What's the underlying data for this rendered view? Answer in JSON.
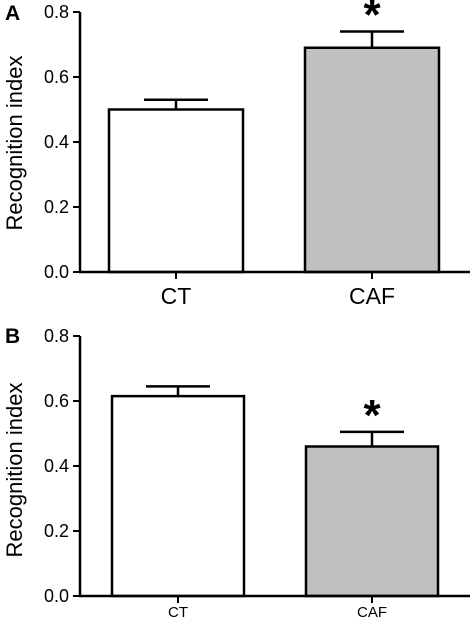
{
  "chart_data": [
    {
      "panel": "A",
      "type": "bar",
      "categories": [
        "CT",
        "CAF"
      ],
      "values": [
        0.5,
        0.69
      ],
      "errors": [
        0.03,
        0.05
      ],
      "significance": [
        "",
        "*"
      ],
      "bar_colors": [
        "#ffffff",
        "#c0c0c0"
      ],
      "ylabel": "Recognition index",
      "yticks": [
        "0.0",
        "0.2",
        "0.4",
        "0.6",
        "0.8"
      ],
      "ylim": [
        0,
        0.8
      ],
      "grid": false
    },
    {
      "panel": "B",
      "type": "bar",
      "categories": [
        "CT",
        "CAF"
      ],
      "values": [
        0.615,
        0.46
      ],
      "errors": [
        0.03,
        0.045
      ],
      "significance": [
        "",
        "*"
      ],
      "bar_colors": [
        "#ffffff",
        "#c0c0c0"
      ],
      "ylabel": "Recognition index",
      "yticks": [
        "0.0",
        "0.2",
        "0.4",
        "0.6",
        "0.8"
      ],
      "ylim": [
        0,
        0.8
      ],
      "grid": false
    }
  ]
}
